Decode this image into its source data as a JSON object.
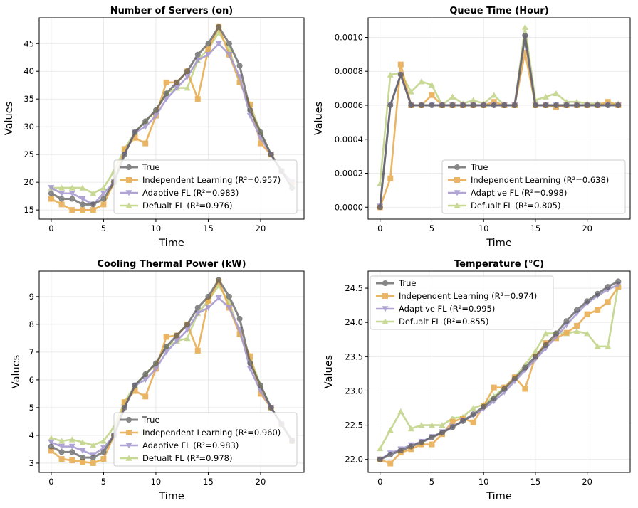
{
  "colors": {
    "True": "#555555",
    "Independent Learning": "#e8ae55",
    "Adaptive FL": "#a79bd0",
    "Defualt FL": "#c3d48a"
  },
  "chart_data": [
    {
      "type": "line",
      "title": "Number of Servers (on)",
      "xlabel": "Time",
      "ylabel": "Values",
      "xlim": [
        -1.15,
        24.15
      ],
      "ylim": [
        13.35,
        49.65
      ],
      "xticks": [
        0,
        5,
        10,
        15,
        20
      ],
      "xtick_labels": [
        "0",
        "5",
        "10",
        "15",
        "20"
      ],
      "yticks": [
        15,
        20,
        25,
        30,
        35,
        40,
        45
      ],
      "ytick_labels": [
        "15",
        "20",
        "25",
        "30",
        "35",
        "40",
        "45"
      ],
      "grid": true,
      "legend_position": "lower-right",
      "x": [
        0,
        1,
        2,
        3,
        4,
        5,
        6,
        7,
        8,
        9,
        10,
        11,
        12,
        13,
        14,
        15,
        16,
        17,
        18,
        19,
        20,
        21,
        22,
        23
      ],
      "series": [
        {
          "name": "True",
          "legend": "True",
          "marker": "circle",
          "values": [
            18,
            17,
            17,
            16,
            16,
            17,
            20,
            25,
            29,
            31,
            33,
            36,
            38,
            40,
            43,
            45,
            48,
            45,
            41,
            33,
            29,
            25,
            22,
            19
          ]
        },
        {
          "name": "Independent Learning",
          "legend": "Independent Learning (R²=0.957)",
          "marker": "square",
          "values": [
            17,
            16,
            15,
            15,
            15,
            16,
            20,
            26,
            28,
            27,
            32,
            38,
            38,
            40,
            35,
            44,
            48,
            43,
            38,
            34,
            27,
            25,
            22,
            20
          ]
        },
        {
          "name": "Adaptive FL",
          "legend": "Adaptive FL (R²=0.983)",
          "marker": "triangle-down",
          "values": [
            19,
            18,
            18,
            17,
            16,
            18,
            20,
            25,
            29,
            30,
            32,
            35,
            37,
            39,
            42,
            43,
            45,
            43,
            39,
            32,
            28,
            25,
            22,
            20
          ]
        },
        {
          "name": "Defualt FL",
          "legend": "Defualt FL (R²=0.976)",
          "marker": "triangle-up",
          "values": [
            19,
            19,
            19,
            19,
            18,
            19,
            22,
            26,
            29,
            31,
            33,
            36,
            37,
            37,
            42,
            44,
            47,
            44,
            38,
            34,
            29,
            25,
            22,
            20
          ]
        }
      ]
    },
    {
      "type": "line",
      "title": "Queue Time (Hour)",
      "xlabel": "Time",
      "ylabel": "Values",
      "xlim": [
        -1.15,
        24.15
      ],
      "ylim": [
        -7e-05,
        0.001115
      ],
      "xticks": [
        0,
        5,
        10,
        15,
        20
      ],
      "xtick_labels": [
        "0",
        "5",
        "10",
        "15",
        "20"
      ],
      "yticks": [
        0,
        0.0002,
        0.0004,
        0.0006,
        0.0008,
        0.001
      ],
      "ytick_labels": [
        "0.0000",
        "0.0002",
        "0.0004",
        "0.0006",
        "0.0008",
        "0.0010"
      ],
      "grid": true,
      "legend_position": "lower-right",
      "x": [
        0,
        1,
        2,
        3,
        4,
        5,
        6,
        7,
        8,
        9,
        10,
        11,
        12,
        13,
        14,
        15,
        16,
        17,
        18,
        19,
        20,
        21,
        22,
        23
      ],
      "series": [
        {
          "name": "True",
          "legend": "True",
          "marker": "circle",
          "values": [
            0,
            0.0006,
            0.00078,
            0.0006,
            0.0006,
            0.0006,
            0.0006,
            0.0006,
            0.0006,
            0.0006,
            0.0006,
            0.0006,
            0.0006,
            0.0006,
            0.00101,
            0.0006,
            0.0006,
            0.0006,
            0.0006,
            0.0006,
            0.0006,
            0.0006,
            0.0006,
            0.0006
          ]
        },
        {
          "name": "Independent Learning",
          "legend": "Independent Learning (R²=0.638)",
          "marker": "square",
          "values": [
            0,
            0.00017,
            0.00084,
            0.0006,
            0.0006,
            0.00066,
            0.0006,
            0.0006,
            0.0006,
            0.0006,
            0.0006,
            0.00062,
            0.0006,
            0.0006,
            0.00091,
            0.0006,
            0.0006,
            0.00059,
            0.0006,
            0.0006,
            0.0006,
            0.0006,
            0.00062,
            0.0006
          ]
        },
        {
          "name": "Adaptive FL",
          "legend": "Adaptive FL (R²=0.998)",
          "marker": "triangle-down",
          "values": [
            5e-06,
            0.0006,
            0.00078,
            0.0006,
            0.0006,
            0.0006,
            0.0006,
            0.0006,
            0.0006,
            0.0006,
            0.0006,
            0.0006,
            0.0006,
            0.0006,
            0.001,
            0.0006,
            0.0006,
            0.0006,
            0.0006,
            0.0006,
            0.0006,
            0.0006,
            0.0006,
            0.0006
          ]
        },
        {
          "name": "Defualt FL",
          "legend": "Defualt FL (R²=0.805)",
          "marker": "triangle-up",
          "values": [
            0.00014,
            0.00078,
            0.00079,
            0.00068,
            0.00074,
            0.00072,
            0.0006,
            0.00065,
            0.00061,
            0.00063,
            0.00061,
            0.00066,
            0.0006,
            0.0006,
            0.00106,
            0.00063,
            0.00065,
            0.00067,
            0.00062,
            0.00062,
            0.00061,
            0.00061,
            0.00061,
            0.00061
          ]
        }
      ]
    },
    {
      "type": "line",
      "title": "Cooling Thermal Power (kW)",
      "xlabel": "Time",
      "ylabel": "Values",
      "xlim": [
        -1.15,
        24.15
      ],
      "ylim": [
        2.665,
        9.92
      ],
      "xticks": [
        0,
        5,
        10,
        15,
        20
      ],
      "xtick_labels": [
        "0",
        "5",
        "10",
        "15",
        "20"
      ],
      "yticks": [
        3,
        4,
        5,
        6,
        7,
        8,
        9
      ],
      "ytick_labels": [
        "3",
        "4",
        "5",
        "6",
        "7",
        "8",
        "9"
      ],
      "grid": true,
      "legend_position": "lower-right",
      "x": [
        0,
        1,
        2,
        3,
        4,
        5,
        6,
        7,
        8,
        9,
        10,
        11,
        12,
        13,
        14,
        15,
        16,
        17,
        18,
        19,
        20,
        21,
        22,
        23
      ],
      "series": [
        {
          "name": "True",
          "legend": "True",
          "marker": "circle",
          "values": [
            3.6,
            3.4,
            3.4,
            3.2,
            3.2,
            3.4,
            4.0,
            5.0,
            5.8,
            6.2,
            6.6,
            7.2,
            7.6,
            8.0,
            8.6,
            9.0,
            9.6,
            9.0,
            8.2,
            6.6,
            5.8,
            5.0,
            4.4,
            3.8
          ]
        },
        {
          "name": "Independent Learning",
          "legend": "Independent Learning (R²=0.960)",
          "marker": "square",
          "values": [
            3.45,
            3.15,
            3.1,
            3.05,
            3.0,
            3.15,
            4.0,
            5.2,
            5.6,
            5.4,
            6.4,
            7.55,
            7.6,
            8.0,
            7.05,
            8.85,
            9.55,
            8.6,
            7.65,
            6.85,
            5.5,
            5.0,
            4.4,
            3.8
          ]
        },
        {
          "name": "Adaptive FL",
          "legend": "Adaptive FL (R²=0.983)",
          "marker": "triangle-down",
          "values": [
            3.75,
            3.6,
            3.6,
            3.45,
            3.3,
            3.55,
            4.0,
            5.0,
            5.8,
            6.0,
            6.4,
            7.0,
            7.4,
            7.8,
            8.4,
            8.6,
            8.95,
            8.6,
            7.8,
            6.4,
            5.6,
            5.0,
            4.4,
            3.8
          ]
        },
        {
          "name": "Defualt FL",
          "legend": "Defualt FL (R²=0.978)",
          "marker": "triangle-up",
          "values": [
            3.9,
            3.8,
            3.85,
            3.75,
            3.65,
            3.8,
            4.3,
            5.2,
            5.8,
            6.2,
            6.6,
            7.2,
            7.4,
            7.5,
            8.4,
            8.85,
            9.4,
            8.8,
            7.65,
            6.8,
            5.8,
            5.0,
            4.4,
            3.8
          ]
        }
      ]
    },
    {
      "type": "line",
      "title": "Temperature (°C)",
      "xlabel": "Time",
      "ylabel": "Values",
      "xlim": [
        -1.15,
        24.15
      ],
      "ylim": [
        21.81,
        24.75
      ],
      "xticks": [
        0,
        5,
        10,
        15,
        20
      ],
      "xtick_labels": [
        "0",
        "5",
        "10",
        "15",
        "20"
      ],
      "yticks": [
        22.0,
        22.5,
        23.0,
        23.5,
        24.0,
        24.5
      ],
      "ytick_labels": [
        "22.0",
        "22.5",
        "23.0",
        "23.5",
        "24.0",
        "24.5"
      ],
      "grid": true,
      "legend_position": "upper-left",
      "x": [
        0,
        1,
        2,
        3,
        4,
        5,
        6,
        7,
        8,
        9,
        10,
        11,
        12,
        13,
        14,
        15,
        16,
        17,
        18,
        19,
        20,
        21,
        22,
        23
      ],
      "series": [
        {
          "name": "True",
          "legend": "True",
          "marker": "circle",
          "values": [
            22.0,
            22.07,
            22.13,
            22.19,
            22.25,
            22.32,
            22.39,
            22.47,
            22.56,
            22.66,
            22.77,
            22.89,
            23.03,
            23.18,
            23.34,
            23.5,
            23.67,
            23.84,
            24.02,
            24.18,
            24.31,
            24.42,
            24.52,
            24.6
          ]
        },
        {
          "name": "Independent Learning",
          "legend": "Independent Learning (R²=0.974)",
          "marker": "square",
          "values": [
            22.0,
            21.94,
            22.1,
            22.15,
            22.22,
            22.22,
            22.37,
            22.55,
            22.6,
            22.54,
            22.78,
            23.05,
            23.05,
            23.2,
            23.03,
            23.5,
            23.7,
            23.77,
            23.85,
            23.95,
            24.12,
            24.18,
            24.3,
            24.52
          ]
        },
        {
          "name": "Adaptive FL",
          "legend": "Adaptive FL (R²=0.995)",
          "marker": "triangle-down",
          "values": [
            22.0,
            22.09,
            22.15,
            22.21,
            22.26,
            22.33,
            22.4,
            22.48,
            22.56,
            22.64,
            22.74,
            22.85,
            22.98,
            23.14,
            23.3,
            23.46,
            23.62,
            23.79,
            23.96,
            24.13,
            24.28,
            24.39,
            24.48,
            24.55
          ]
        },
        {
          "name": "Defualt FL",
          "legend": "Defualt FL (R²=0.855)",
          "marker": "triangle-up",
          "values": [
            22.16,
            22.43,
            22.7,
            22.45,
            22.5,
            22.5,
            22.5,
            22.6,
            22.62,
            22.75,
            22.8,
            22.92,
            23.05,
            23.2,
            23.38,
            23.58,
            23.84,
            23.84,
            23.84,
            23.87,
            23.84,
            23.65,
            23.65,
            24.55
          ]
        }
      ]
    }
  ]
}
